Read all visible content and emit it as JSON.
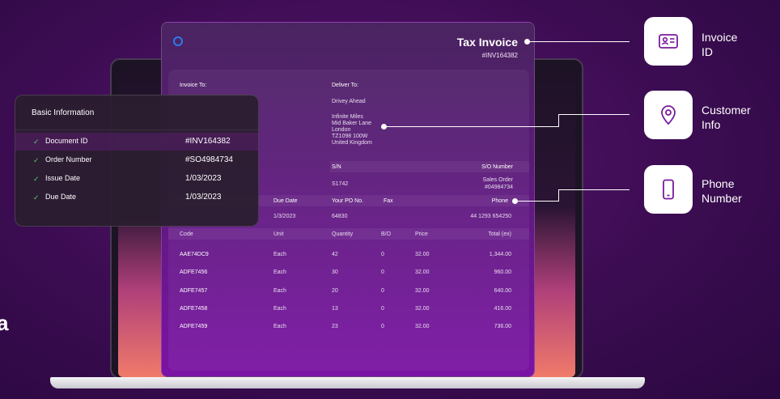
{
  "edge_text": "a",
  "invoice": {
    "title": "Tax Invoice",
    "number": "#INV164382",
    "invoice_to_label": "Invoice To:",
    "deliver_to_label": "Deliver To:",
    "deliver_name": "Drivey Ahead",
    "address_lines": [
      "Infinite Miles",
      "Mid Baker Lane",
      "London",
      "TZ1098 100W",
      "United Kingdom"
    ],
    "sn_label": "S/N",
    "sn_value": "S1742",
    "so_label": "S/O Number",
    "so_value_line1": "Sales Order",
    "so_value_line2": "#04984734",
    "due_date_label": "Due Date",
    "due_date_value": "1/3/2023",
    "po_label": "Your PO No.",
    "po_value": "64830",
    "fax_label": "Fax",
    "phone_label": "Phone",
    "phone_value": "44 1293 654250",
    "table_headers": {
      "code": "Code",
      "unit": "Unit",
      "quantity": "Quantity",
      "bo": "B/O",
      "price": "Price",
      "total": "Total (ex)"
    },
    "items": [
      {
        "code": "AAE74DC9",
        "unit": "Each",
        "quantity": "42",
        "bo": "0",
        "price": "32.00",
        "total": "1,344.00"
      },
      {
        "code": "ADFE7456",
        "unit": "Each",
        "quantity": "30",
        "bo": "0",
        "price": "32.00",
        "total": "960.00"
      },
      {
        "code": "ADFE7457",
        "unit": "Each",
        "quantity": "20",
        "bo": "0",
        "price": "32.00",
        "total": "640.00"
      },
      {
        "code": "ADFE7458",
        "unit": "Each",
        "quantity": "13",
        "bo": "0",
        "price": "32.00",
        "total": "416.00"
      },
      {
        "code": "ADFE7459",
        "unit": "Each",
        "quantity": "23",
        "bo": "0",
        "price": "32.00",
        "total": "736.00"
      }
    ]
  },
  "basic_info": {
    "title": "Basic Information",
    "rows": [
      {
        "label": "Document ID",
        "value": "#INV164382"
      },
      {
        "label": "Order Number",
        "value": "#SO4984734"
      },
      {
        "label": "Issue Date",
        "value": "1/03/2023"
      },
      {
        "label": "Due Date",
        "value": "1/03/2023"
      }
    ]
  },
  "features": [
    {
      "line1": "Invoice",
      "line2": "ID",
      "icon": "id-card-icon"
    },
    {
      "line1": "Customer",
      "line2": "Info",
      "icon": "location-pin-icon"
    },
    {
      "line1": "Phone",
      "line2": "Number",
      "icon": "phone-icon"
    }
  ],
  "colors": {
    "accent": "#7a14a4",
    "background": "#3c0c52",
    "check": "#4cd06b",
    "logo": "#2a7cf0"
  }
}
